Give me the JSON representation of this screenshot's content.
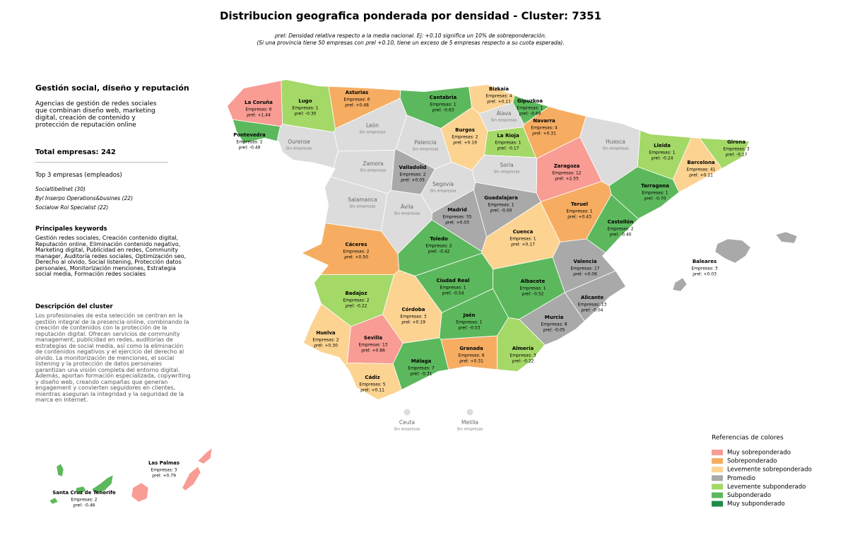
{
  "title": "Distribucion geografica ponderada por densidad - Cluster: 7351",
  "subtitle": [
    "ρrel: Densidad relativa respecto a la media nacional. Ej: +0.10 significa un 10% de sobreponderación.",
    "(Si una provincia tiene 50 empresas con ρrel +0.10, tiene un exceso de 5 empresas respecto a su cuota esperada)."
  ],
  "sidebar": {
    "heading": "Gestión social, diseño y reputación",
    "summary": "Agencias de gestión de redes sociales que combinan diseño web, marketing digital, creación de contenido y protección de reputación online",
    "total": "Total empresas: 242",
    "top_heading": "Top 3 empresas (empleados)",
    "top": [
      "Socialtibellnet (30)",
      "Byl Inserpo Operations&busines (22)",
      "Socialow Roi Specialist (22)"
    ],
    "keywords_heading": "Principales keywords",
    "keywords": "Gestión redes sociales, Creación contenido digital, Reputación online, Eliminación contenido negativo, Marketing digital, Publicidad en redes, Community manager, Auditoría redes sociales, Optimización seo, Derecho al olvido, Social listening, Protección datos personales, Monitorización menciones, Estrategia social media, Formación redes sociales",
    "description_heading": "Descripción del cluster",
    "description": "Los profesionales de esta selección se centran en la gestión integral de la presencia online, combinando la creación de contenidos con la protección de la reputación digital. Ofrecen servicios de community management, publicidad en redes, auditorías de estrategias de social media, así como la eliminación de contenidos negativos y el ejercicio del derecho al olvido. La monitorización de menciones, el social listening y la protección de datos personales garantizan una visión completa del entorno digital. Además, aportan formación especializada, copywriting y diseño web, creando campañas que generan engagement y convierten seguidores en clientes, mientras aseguran la integridad y la seguridad de la marca en internet."
  },
  "provinces": [
    {
      "name": "La Coruña",
      "companies": "Empresas: 6",
      "rho": "ρrel: +1.44",
      "color": "#f89c94"
    },
    {
      "name": "Lugo",
      "companies": "Empresas: 1",
      "rho": "ρrel: -0.30",
      "color": "#a4d867"
    },
    {
      "name": "Asturias",
      "companies": "Empresas: 6",
      "rho": "ρrel: +0.48",
      "color": "#f6ad62"
    },
    {
      "name": "Cantabria",
      "companies": "Empresas: 1",
      "rho": "ρrel: -0.63",
      "color": "#5cb85c"
    },
    {
      "name": "Bizkaia",
      "companies": "Empresas: 4",
      "rho": "ρrel: +0.11",
      "color": "#fcd391"
    },
    {
      "name": "Gipuzkoa",
      "companies": "Empresas: 1",
      "rho": "ρrel: -0.69",
      "color": "#5cb85c"
    },
    {
      "name": "Álava",
      "note": "Sin empresas",
      "color": "#dcdcdc"
    },
    {
      "name": "Navarra",
      "companies": "Empresas: 4",
      "rho": "ρrel: +0.31",
      "color": "#f6ad62"
    },
    {
      "name": "Pontevedra",
      "companies": "Empresas: 2",
      "rho": "ρrel: -0.49",
      "color": "#5cb85c"
    },
    {
      "name": "Ourense",
      "note": "Sin empresas",
      "color": "#dcdcdc"
    },
    {
      "name": "León",
      "note": "Sin empresas",
      "color": "#dcdcdc"
    },
    {
      "name": "Palencia",
      "note": "Sin empresas",
      "color": "#dcdcdc"
    },
    {
      "name": "Burgos",
      "companies": "Empresas: 2",
      "rho": "ρrel: +0.19",
      "color": "#fcd391"
    },
    {
      "name": "La Rioja",
      "companies": "Empresas: 1",
      "rho": "ρrel: -0.17",
      "color": "#a4d867"
    },
    {
      "name": "Huesca",
      "note": "Sin empresas",
      "color": "#dcdcdc"
    },
    {
      "name": "Lleida",
      "companies": "Empresas: 1",
      "rho": "ρrel: -0.24",
      "color": "#a4d867"
    },
    {
      "name": "Girona",
      "companies": "Empresas: 3",
      "rho": "ρrel: -0.17",
      "color": "#a4d867"
    },
    {
      "name": "Barcelona",
      "companies": "Empresas: 41",
      "rho": "ρrel: +0.11",
      "color": "#fcd391"
    },
    {
      "name": "Zaragoza",
      "companies": "Empresas: 12",
      "rho": "ρrel: +2.55",
      "color": "#f89c94"
    },
    {
      "name": "Zamora",
      "note": "Sin empresas",
      "color": "#dcdcdc"
    },
    {
      "name": "Valladolid",
      "companies": "Empresas: 2",
      "rho": "ρrel: +0.05",
      "color": "#a9a9a9"
    },
    {
      "name": "Soria",
      "note": "Sin empresas",
      "color": "#dcdcdc"
    },
    {
      "name": "Segovia",
      "note": "Sin empresas",
      "color": "#dcdcdc"
    },
    {
      "name": "Tarragona",
      "companies": "Empresas: 1",
      "rho": "ρrel: -0.70",
      "color": "#5cb85c"
    },
    {
      "name": "Guadalajara",
      "companies": "Empresas: 1",
      "rho": "ρrel: -0.00",
      "color": "#a9a9a9"
    },
    {
      "name": "Salamanca",
      "note": "Sin empresas",
      "color": "#dcdcdc"
    },
    {
      "name": "Ávila",
      "note": "Sin empresas",
      "color": "#dcdcdc"
    },
    {
      "name": "Madrid",
      "companies": "Empresas: 55",
      "rho": "ρrel: +0.03",
      "color": "#a9a9a9"
    },
    {
      "name": "Teruel",
      "companies": "Empresas: 1",
      "rho": "ρrel: +0.43",
      "color": "#f6ad62"
    },
    {
      "name": "Castellón",
      "companies": "Empresas: 2",
      "rho": "ρrel: -0.40",
      "color": "#5cb85c"
    },
    {
      "name": "Cáceres",
      "companies": "Empresas: 2",
      "rho": "ρrel: +0.50",
      "color": "#f6ad62"
    },
    {
      "name": "Toledo",
      "companies": "Empresas: 2",
      "rho": "ρrel: -0.42",
      "color": "#5cb85c"
    },
    {
      "name": "Cuenca",
      "companies": "Empresas: 1",
      "rho": "ρrel: +0.17",
      "color": "#fcd391"
    },
    {
      "name": "Valencia",
      "companies": "Empresas: 17",
      "rho": "ρrel: +0.06",
      "color": "#a9a9a9"
    },
    {
      "name": "Baleares",
      "companies": "Empresas: 3",
      "rho": "ρrel: +0.03",
      "color": "#a9a9a9"
    },
    {
      "name": "Ciudad Real",
      "companies": "Empresas: 1",
      "rho": "ρrel: -0.54",
      "color": "#5cb85c"
    },
    {
      "name": "Albacete",
      "companies": "Empresas: 1",
      "rho": "ρrel: -0.52",
      "color": "#5cb85c"
    },
    {
      "name": "Badajoz",
      "companies": "Empresas: 2",
      "rho": "ρrel: -0.22",
      "color": "#a4d867"
    },
    {
      "name": "Alicante",
      "companies": "Empresas: 13",
      "rho": "ρrel: -0.04",
      "color": "#a9a9a9"
    },
    {
      "name": "Córdoba",
      "companies": "Empresas: 3",
      "rho": "ρrel: +0.19",
      "color": "#fcd391"
    },
    {
      "name": "Jaén",
      "companies": "Empresas: 1",
      "rho": "ρrel: -0.53",
      "color": "#5cb85c"
    },
    {
      "name": "Murcia",
      "companies": "Empresas: 8",
      "rho": "ρrel: -0.05",
      "color": "#a9a9a9"
    },
    {
      "name": "Huelva",
      "companies": "Empresas: 2",
      "rho": "ρrel: +0.30",
      "color": "#fcd391"
    },
    {
      "name": "Sevilla",
      "companies": "Empresas: 13",
      "rho": "ρrel: +0.86",
      "color": "#f89c94"
    },
    {
      "name": "Granada",
      "companies": "Empresas: 6",
      "rho": "ρrel: +0.31",
      "color": "#f6ad62"
    },
    {
      "name": "Almería",
      "companies": "Empresas: 3",
      "rho": "ρrel: -0.22",
      "color": "#a4d867"
    },
    {
      "name": "Málaga",
      "companies": "Empresas: 7",
      "rho": "ρrel: -0.31",
      "color": "#5cb85c"
    },
    {
      "name": "Cádiz",
      "companies": "Empresas: 5",
      "rho": "ρrel: +0.11",
      "color": "#fcd391"
    },
    {
      "name": "Ceuta",
      "note": "Sin empresas",
      "color": "#dcdcdc"
    },
    {
      "name": "Melilla",
      "note": "Sin empresas",
      "color": "#dcdcdc"
    },
    {
      "name": "Las Palmas",
      "companies": "Empresas: 3",
      "rho": "ρrel: +0.79",
      "color": "#f89c94"
    },
    {
      "name": "Santa Cruz de Tenerife",
      "companies": "Empresas: 2",
      "rho": "ρrel: -0.46",
      "color": "#5cb85c"
    }
  ],
  "legend": {
    "title": "Referencias de colores",
    "items": [
      {
        "label": "Muy sobreponderado",
        "color": "#f89c94"
      },
      {
        "label": "Sobreponderado",
        "color": "#f6ad62"
      },
      {
        "label": "Levemente sobreponderado",
        "color": "#fcd391"
      },
      {
        "label": "Promedio",
        "color": "#a9a9a9"
      },
      {
        "label": "Levemente subponderado",
        "color": "#a4d867"
      },
      {
        "label": "Subponderado",
        "color": "#5cb85c"
      },
      {
        "label": "Muy subponderado",
        "color": "#1e8c4a"
      }
    ]
  }
}
